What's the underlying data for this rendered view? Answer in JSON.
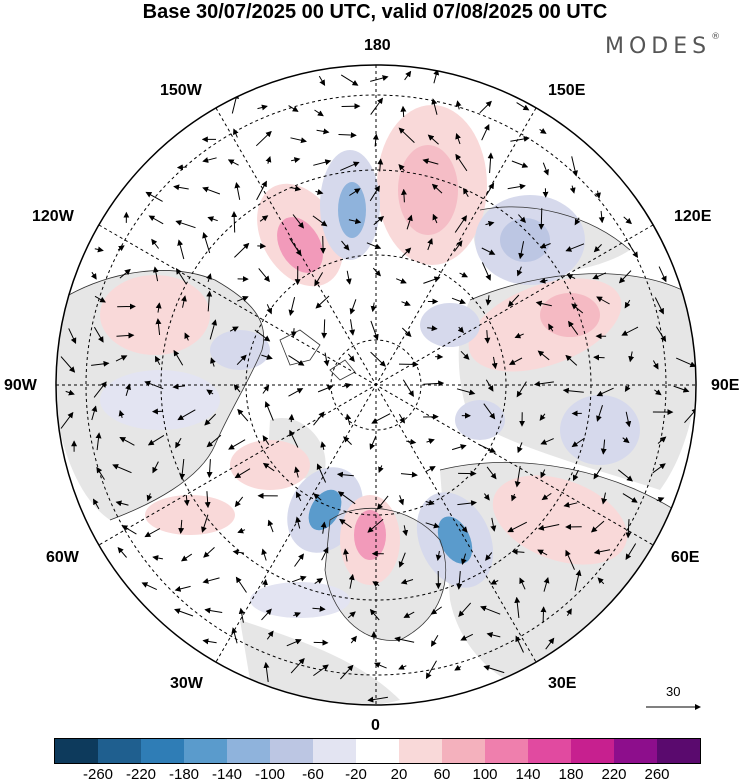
{
  "header": {
    "title": "Base 30/07/2025 00 UTC, valid 07/08/2025 00 UTC",
    "brand": "MODES",
    "brand_mark": "®"
  },
  "map": {
    "projection": "north-polar-stereographic",
    "longitude_labels": {
      "top": "180",
      "top_left": "150W",
      "top_right": "150E",
      "upper_left": "120W",
      "upper_right": "120E",
      "left": "90W",
      "right": "90E",
      "lower_left": "60W",
      "lower_right": "60E",
      "bottom_left": "30W",
      "bottom_right": "30E",
      "bottom": "0"
    },
    "vector_scale_label": "30"
  },
  "colorbar": {
    "colors": [
      "#0d3a5c",
      "#1f5f8f",
      "#2f7db6",
      "#5a9bcc",
      "#8fb3dc",
      "#bcc6e3",
      "#e3e4f2",
      "#ffffff",
      "#f9d9d9",
      "#f4b1bd",
      "#ef7fad",
      "#e14aa0",
      "#c7208f",
      "#8d0e8c",
      "#5a0a6e"
    ],
    "tick_labels": [
      "-260",
      "-220",
      "-180",
      "-140",
      "-100",
      "-60",
      "-20",
      "20",
      "60",
      "100",
      "140",
      "180",
      "220",
      "260"
    ]
  }
}
